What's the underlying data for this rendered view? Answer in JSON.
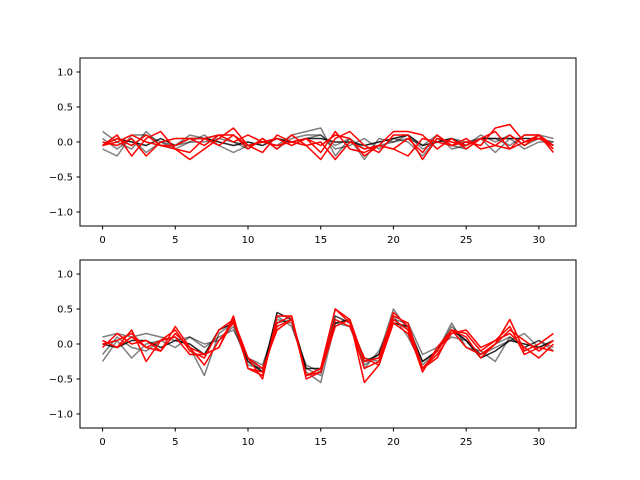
{
  "chart_data": [
    {
      "type": "line",
      "title": "",
      "xlabel": "",
      "ylabel": "",
      "xlim": [
        -1.55,
        32.55
      ],
      "ylim": [
        -1.2,
        1.2
      ],
      "xticks": [
        0,
        5,
        10,
        15,
        20,
        25,
        30
      ],
      "xtick_labels": [
        "0",
        "5",
        "10",
        "15",
        "20",
        "25",
        "30"
      ],
      "yticks": [
        1.0,
        0.5,
        0.0,
        -0.5,
        -1.0
      ],
      "ytick_labels": [
        "1.0",
        "0.5",
        "0.0",
        "−0.5",
        "−1.0"
      ],
      "grid": false,
      "legend": "none",
      "x": [
        0,
        1,
        2,
        3,
        4,
        5,
        6,
        7,
        8,
        9,
        10,
        11,
        12,
        13,
        14,
        15,
        16,
        17,
        18,
        19,
        20,
        21,
        22,
        23,
        24,
        25,
        26,
        27,
        28,
        29,
        30,
        31
      ],
      "series": [
        {
          "color": "#000000",
          "opacity": 0.5,
          "values": [
            0.15,
            0.0,
            -0.1,
            0.15,
            -0.05,
            -0.05,
            0.1,
            0.05,
            0.1,
            0.0,
            -0.05,
            0.0,
            -0.05,
            0.1,
            0.15,
            0.2,
            -0.2,
            0.05,
            -0.25,
            0.05,
            0.0,
            0.1,
            -0.1,
            0.0,
            0.05,
            0.0,
            0.05,
            0.05,
            -0.05,
            0.1,
            0.1,
            0.05
          ]
        },
        {
          "color": "#000000",
          "opacity": 0.5,
          "values": [
            -0.1,
            -0.2,
            0.1,
            0.1,
            0.0,
            -0.1,
            0.0,
            0.1,
            -0.05,
            -0.15,
            -0.05,
            0.0,
            0.05,
            -0.05,
            0.05,
            0.1,
            -0.1,
            -0.05,
            0.05,
            -0.1,
            0.05,
            0.0,
            -0.2,
            0.05,
            -0.05,
            -0.1,
            0.05,
            -0.15,
            0.05,
            -0.1,
            0.0,
            0.0
          ]
        },
        {
          "color": "#000000",
          "opacity": 0.5,
          "values": [
            0.05,
            -0.1,
            0.05,
            -0.15,
            0.0,
            -0.05,
            0.0,
            0.0,
            0.05,
            0.0,
            -0.1,
            0.05,
            -0.1,
            0.05,
            0.1,
            0.1,
            -0.05,
            0.05,
            -0.1,
            -0.05,
            0.0,
            0.05,
            -0.05,
            0.1,
            -0.1,
            -0.05,
            0.1,
            0.0,
            0.1,
            -0.05,
            0.05,
            0.0
          ]
        },
        {
          "color": "#000000",
          "opacity": 0.85,
          "values": [
            -0.05,
            0.05,
            0.0,
            -0.05,
            0.05,
            -0.05,
            0.05,
            0.05,
            0.0,
            -0.05,
            0.0,
            -0.05,
            0.05,
            0.0,
            0.05,
            0.05,
            0.0,
            0.0,
            -0.05,
            0.0,
            0.05,
            0.1,
            -0.05,
            0.0,
            0.05,
            -0.05,
            0.05,
            0.05,
            0.05,
            0.05,
            0.05,
            -0.05
          ]
        },
        {
          "color": "#ff0000",
          "opacity": 1,
          "values": [
            -0.05,
            0.1,
            -0.2,
            0.05,
            0.15,
            -0.1,
            -0.25,
            -0.1,
            0.05,
            0.2,
            -0.05,
            -0.15,
            0.1,
            0.0,
            0.05,
            -0.05,
            0.1,
            0.05,
            -0.2,
            -0.05,
            0.15,
            0.15,
            0.1,
            -0.1,
            0.05,
            -0.1,
            0.05,
            0.15,
            -0.1,
            0.1,
            0.1,
            -0.05
          ]
        },
        {
          "color": "#ff0000",
          "opacity": 1,
          "values": [
            -0.05,
            0.05,
            -0.05,
            0.1,
            -0.05,
            -0.05,
            0.05,
            -0.05,
            0.1,
            0.0,
            0.1,
            0.0,
            0.05,
            -0.05,
            0.05,
            -0.15,
            0.15,
            -0.1,
            -0.15,
            -0.05,
            -0.1,
            0.05,
            -0.15,
            0.1,
            -0.05,
            0.0,
            -0.05,
            0.2,
            0.25,
            0.0,
            0.1,
            -0.1
          ]
        },
        {
          "color": "#ff0000",
          "opacity": 1,
          "values": [
            0.0,
            -0.05,
            0.05,
            -0.2,
            0.0,
            0.05,
            0.05,
            0.05,
            0.1,
            0.1,
            -0.05,
            0.0,
            -0.05,
            0.0,
            -0.05,
            0.0,
            -0.25,
            0.0,
            -0.1,
            -0.05,
            -0.1,
            -0.2,
            0.05,
            0.0,
            -0.05,
            0.05,
            -0.1,
            -0.05,
            -0.1,
            0.0,
            0.05,
            -0.05
          ]
        },
        {
          "color": "#ff0000",
          "opacity": 1,
          "values": [
            -0.05,
            0.0,
            0.1,
            0.0,
            -0.05,
            -0.1,
            -0.15,
            0.05,
            -0.05,
            0.1,
            -0.1,
            0.05,
            -0.1,
            0.1,
            -0.05,
            -0.25,
            0.05,
            0.15,
            -0.05,
            -0.15,
            0.1,
            0.1,
            -0.25,
            0.05,
            0.0,
            -0.05,
            0.05,
            -0.05,
            0.1,
            -0.05,
            0.1,
            -0.15
          ]
        }
      ]
    },
    {
      "type": "line",
      "title": "",
      "xlabel": "",
      "ylabel": "",
      "xlim": [
        -1.55,
        32.55
      ],
      "ylim": [
        -1.2,
        1.2
      ],
      "xticks": [
        0,
        5,
        10,
        15,
        20,
        25,
        30
      ],
      "xtick_labels": [
        "0",
        "5",
        "10",
        "15",
        "20",
        "25",
        "30"
      ],
      "yticks": [
        1.0,
        0.5,
        0.0,
        -0.5,
        -1.0
      ],
      "ytick_labels": [
        "1.0",
        "0.5",
        "0.0",
        "−0.5",
        "−1.0"
      ],
      "grid": false,
      "legend": "none",
      "x": [
        0,
        1,
        2,
        3,
        4,
        5,
        6,
        7,
        8,
        9,
        10,
        11,
        12,
        13,
        14,
        15,
        16,
        17,
        18,
        19,
        20,
        21,
        22,
        23,
        24,
        25,
        26,
        27,
        28,
        29,
        30,
        31
      ],
      "series": [
        {
          "color": "#000000",
          "opacity": 0.5,
          "values": [
            -0.25,
            0.05,
            -0.2,
            0.0,
            0.05,
            0.1,
            -0.05,
            -0.45,
            0.15,
            0.3,
            -0.2,
            -0.4,
            0.35,
            0.3,
            -0.4,
            -0.55,
            0.3,
            0.25,
            -0.3,
            -0.15,
            0.5,
            0.2,
            -0.25,
            -0.1,
            0.3,
            -0.05,
            -0.1,
            -0.25,
            0.1,
            -0.05,
            0.05,
            -0.1
          ]
        },
        {
          "color": "#000000",
          "opacity": 0.5,
          "values": [
            0.1,
            0.15,
            0.1,
            0.15,
            0.1,
            0.05,
            0.1,
            -0.05,
            0.1,
            0.2,
            -0.2,
            -0.3,
            0.3,
            0.35,
            -0.35,
            -0.45,
            0.4,
            0.3,
            -0.35,
            -0.1,
            0.35,
            0.3,
            -0.15,
            -0.05,
            0.1,
            0.05,
            -0.15,
            -0.05,
            0.05,
            0.15,
            -0.05,
            0.05
          ]
        },
        {
          "color": "#000000",
          "opacity": 0.5,
          "values": [
            -0.15,
            0.1,
            -0.05,
            -0.1,
            0.05,
            -0.05,
            0.1,
            0.0,
            0.05,
            0.25,
            -0.3,
            -0.35,
            0.4,
            0.25,
            -0.3,
            -0.4,
            0.4,
            0.3,
            -0.2,
            -0.25,
            0.4,
            0.1,
            -0.3,
            -0.1,
            0.25,
            0.05,
            -0.15,
            0.0,
            0.1,
            -0.05,
            0.05,
            -0.05
          ]
        },
        {
          "color": "#000000",
          "opacity": 0.85,
          "values": [
            0.0,
            -0.05,
            0.05,
            0.05,
            -0.05,
            0.05,
            0.0,
            -0.15,
            0.2,
            0.3,
            -0.25,
            -0.4,
            0.45,
            0.35,
            -0.35,
            -0.35,
            0.3,
            0.35,
            -0.25,
            -0.15,
            0.3,
            0.25,
            -0.25,
            -0.1,
            0.2,
            0.05,
            -0.2,
            -0.1,
            0.05,
            0.0,
            -0.05,
            0.05
          ]
        },
        {
          "color": "#ff0000",
          "opacity": 1,
          "values": [
            0.05,
            -0.05,
            0.2,
            -0.25,
            0.05,
            0.2,
            -0.1,
            -0.2,
            0.2,
            0.35,
            -0.2,
            -0.5,
            0.4,
            0.4,
            -0.45,
            -0.35,
            0.5,
            0.35,
            -0.55,
            -0.3,
            0.35,
            0.2,
            -0.4,
            -0.05,
            0.2,
            -0.05,
            -0.15,
            0.0,
            0.35,
            -0.1,
            0.0,
            0.15
          ]
        },
        {
          "color": "#ff0000",
          "opacity": 1,
          "values": [
            -0.05,
            0.15,
            0.0,
            0.05,
            -0.1,
            0.25,
            -0.05,
            -0.15,
            -0.05,
            0.35,
            -0.35,
            -0.4,
            0.25,
            0.35,
            -0.45,
            -0.35,
            0.5,
            0.3,
            -0.35,
            -0.25,
            0.4,
            0.3,
            -0.35,
            -0.15,
            0.15,
            0.2,
            -0.05,
            0.05,
            0.25,
            -0.15,
            -0.05,
            -0.1
          ]
        },
        {
          "color": "#ff0000",
          "opacity": 1,
          "values": [
            0.0,
            0.05,
            0.15,
            -0.05,
            0.05,
            0.1,
            -0.15,
            -0.15,
            -0.05,
            0.4,
            -0.35,
            -0.45,
            0.3,
            0.4,
            -0.5,
            -0.4,
            0.25,
            0.35,
            -0.25,
            -0.2,
            0.45,
            0.25,
            -0.35,
            -0.2,
            0.2,
            0.15,
            -0.1,
            0.05,
            0.15,
            -0.05,
            -0.2,
            0.0
          ]
        },
        {
          "color": "#ff0000",
          "opacity": 1,
          "values": [
            0.05,
            -0.05,
            0.1,
            -0.05,
            -0.1,
            0.15,
            -0.05,
            -0.3,
            0.05,
            0.3,
            -0.2,
            -0.35,
            0.2,
            0.35,
            -0.45,
            -0.4,
            0.35,
            0.25,
            -0.2,
            -0.3,
            0.3,
            0.15,
            -0.35,
            -0.1,
            0.2,
            0.1,
            -0.2,
            0.0,
            0.2,
            0.05,
            -0.1,
            0.05
          ]
        }
      ]
    }
  ]
}
